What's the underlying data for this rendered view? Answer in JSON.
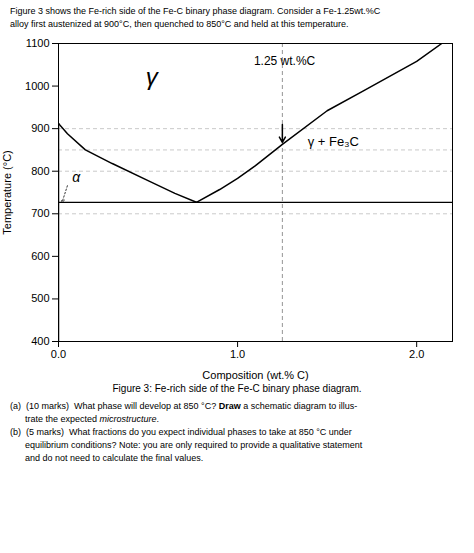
{
  "chart_data": {
    "type": "line",
    "subtitle": [
      "Figure 3 shows the Fe-rich side of the Fe-C binary phase diagram. Consider a Fe-1.25wt.%C",
      "alloy first austenized at 900°C, then quenched to 850°C and held at this temperature."
    ],
    "xlabel": "Composition (wt.% C)",
    "ylabel": "Temperature (°C)",
    "xlim": [
      0,
      2.2
    ],
    "ylim": [
      400,
      1100
    ],
    "xticks": [
      {
        "value": 0,
        "label": "0.0"
      },
      {
        "value": 1.0,
        "label": "1.0"
      },
      {
        "value": 2.0,
        "label": "2.0"
      }
    ],
    "yticks": [
      400,
      500,
      600,
      700,
      800,
      900,
      1000,
      1100
    ],
    "grid": false,
    "series": [
      {
        "x": [
          0.0,
          0.05,
          0.15,
          0.3,
          0.5,
          0.65,
          0.77
        ],
        "values": [
          912,
          888,
          850,
          818,
          778,
          748,
          727
        ],
        "color": "#000000",
        "line_style": "solid"
      },
      {
        "x": [
          0.77,
          0.9,
          1.0,
          1.1,
          1.25,
          1.5,
          1.7,
          2.0,
          2.14
        ],
        "values": [
          727,
          757,
          783,
          813,
          863,
          942,
          988,
          1058,
          1100
        ],
        "color": "#000000",
        "line_style": "solid"
      },
      {
        "x": [
          0.0,
          0.0
        ],
        "values": [
          400,
          912
        ],
        "color": "#000000",
        "line_style": "solid"
      }
    ],
    "hlines": [
      {
        "y": 727,
        "color": "#000000",
        "line_style": "solid"
      },
      {
        "y": 700,
        "color": "#bbbbbb",
        "line_style": "dashed"
      },
      {
        "y": 800,
        "color": "#bbbbbb",
        "line_style": "dashed"
      },
      {
        "y": 900,
        "color": "#bbbbbb",
        "line_style": "dashed"
      },
      {
        "y": 850,
        "color": "#bbbbbb",
        "line_style": "dashed"
      }
    ],
    "vlines": [
      {
        "x": 1.25,
        "color": "#888888",
        "line_style": "dashed"
      }
    ],
    "annotations": [
      {
        "text": "γ",
        "x": 0.52,
        "y": 1020
      },
      {
        "text": "γ + Fe₃C",
        "x": 1.38,
        "y": 868
      },
      {
        "text": "1.25 wt.%C",
        "x": 1.08,
        "y": 1058
      },
      {
        "text": "α",
        "x": 0.065,
        "y": 786,
        "arrow_to": [
          0.02,
          727
        ]
      }
    ],
    "arrows": [
      {
        "x": 1.25,
        "y_from": 910,
        "y_to": 868
      }
    ],
    "caption": "Figure 3:  Fe-rich side of the Fe-C binary phase diagram.",
    "notes": [
      [
        {
          "text": "(a)  (10 marks)  What phase will develop at 850 °C? "
        },
        {
          "text": "Draw",
          "style": "bold"
        },
        {
          "text": " a schematic diagram to illus-"
        }
      ],
      [
        {
          "text": "      trate the expected "
        },
        {
          "text": "microstructure",
          "style": "italic"
        },
        {
          "text": "."
        }
      ],
      [
        {
          "text": "(b)  (5 marks)  What fractions do you expect individual phases to take at 850 °C under"
        }
      ],
      [
        {
          "text": "      equilibrium conditions? Note: you are only required to provide a qualitative statement"
        }
      ],
      [
        {
          "text": "      and do not need to calculate the final values."
        }
      ]
    ]
  }
}
